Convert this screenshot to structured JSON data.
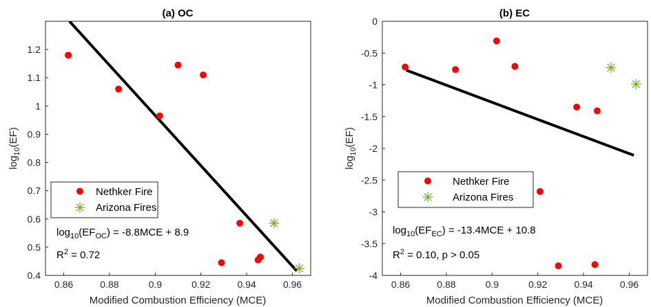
{
  "colors": {
    "nethker": "#ff0000",
    "arizona": "#77ac30",
    "fit": "#000000",
    "axis": "#262626"
  },
  "chart_data": [
    {
      "type": "scatter",
      "title": "(a) OC",
      "xlabel": "Modified Combustion Efficiency (MCE)",
      "ylabel": {
        "base": "log",
        "sub": "10",
        "rest": "(EF)"
      },
      "xlim": [
        0.852,
        0.968
      ],
      "ylim": [
        0.4,
        1.3
      ],
      "xticks": [
        0.86,
        0.88,
        0.9,
        0.92,
        0.94,
        0.96
      ],
      "xtick_labels": [
        "0.86",
        "0.88",
        "0.9",
        "0.92",
        "0.94",
        "0.96"
      ],
      "yticks": [
        0.4,
        0.5,
        0.6,
        0.7,
        0.8,
        0.9,
        1.0,
        1.1,
        1.2
      ],
      "ytick_labels": [
        "0.4",
        "0.5",
        "0.6",
        "0.7",
        "0.8",
        "0.9",
        "1",
        "1.1",
        "1.2"
      ],
      "legend": {
        "placement": "lower-left",
        "entries": [
          "Nethker Fire",
          "Arizona Fires"
        ]
      },
      "series": [
        {
          "name": "Nethker Fire",
          "marker": "circle",
          "x": [
            0.862,
            0.884,
            0.902,
            0.91,
            0.921,
            0.929,
            0.937,
            0.945,
            0.946
          ],
          "y": [
            1.18,
            1.06,
            0.965,
            1.145,
            1.11,
            0.445,
            0.585,
            0.455,
            0.465
          ]
        },
        {
          "name": "Arizona Fires",
          "marker": "star",
          "x": [
            0.952,
            0.963
          ],
          "y": [
            0.585,
            0.425
          ]
        }
      ],
      "fit": {
        "x": [
          0.8625,
          0.962
        ],
        "y": [
          1.3,
          0.415
        ]
      },
      "equation": {
        "pre": "log",
        "sub1": "10",
        "mid": "(EF",
        "sub2": "OC",
        "post": ") = -8.8MCE + 8.9"
      },
      "r2": {
        "pre": "R",
        "sup": "2",
        "post": " = 0.72"
      }
    },
    {
      "type": "scatter",
      "title": "(b) EC",
      "xlabel": "Modified Combustion Efficiency (MCE)",
      "ylabel": {
        "base": "log",
        "sub": "10",
        "rest": "(EF)"
      },
      "xlim": [
        0.852,
        0.968
      ],
      "ylim": [
        -4,
        0
      ],
      "xticks": [
        0.86,
        0.88,
        0.9,
        0.92,
        0.94,
        0.96
      ],
      "xtick_labels": [
        "0.86",
        "0.88",
        "0.9",
        "0.92",
        "0.94",
        "0.96"
      ],
      "yticks": [
        -4,
        -3.5,
        -3,
        -2.5,
        -2,
        -1.5,
        -1,
        -0.5,
        0
      ],
      "ytick_labels": [
        "-4",
        "-3.5",
        "-3",
        "-2.5",
        "-2",
        "-1.5",
        "-1",
        "-0.5",
        "0"
      ],
      "legend": {
        "placement": "center-left",
        "entries": [
          "Nethker Fire",
          "Arizona Fires"
        ]
      },
      "series": [
        {
          "name": "Nethker Fire",
          "marker": "circle",
          "x": [
            0.862,
            0.884,
            0.902,
            0.91,
            0.921,
            0.929,
            0.937,
            0.945,
            0.946
          ],
          "y": [
            -0.72,
            -0.76,
            -0.31,
            -0.71,
            -2.68,
            -3.85,
            -1.35,
            -3.83,
            -1.41
          ]
        },
        {
          "name": "Arizona Fires",
          "marker": "star",
          "x": [
            0.952,
            0.963
          ],
          "y": [
            -0.73,
            -0.99
          ]
        }
      ],
      "fit": {
        "x": [
          0.8625,
          0.962
        ],
        "y": [
          -0.77,
          -2.11
        ]
      },
      "equation": {
        "pre": "log",
        "sub1": "10",
        "mid": "(EF",
        "sub2": "EC",
        "post": ") = -13.4MCE + 10.8"
      },
      "r2": {
        "pre": "R",
        "sup": "2",
        "post": " = 0.10, p > 0.05"
      }
    }
  ]
}
